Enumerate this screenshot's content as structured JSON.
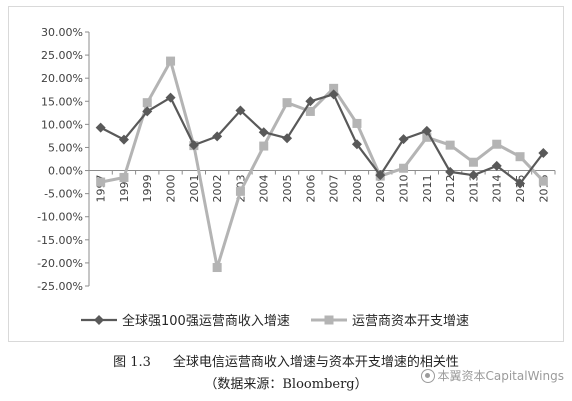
{
  "chart_data": {
    "type": "line",
    "title": "",
    "xlabel": "",
    "ylabel": "",
    "categories": [
      "1997",
      "1998",
      "1999",
      "2000",
      "2001",
      "2002",
      "2003",
      "2004",
      "2005",
      "2006",
      "2007",
      "2008",
      "2009",
      "2010",
      "2011",
      "2012",
      "2013",
      "2014",
      "2015",
      "2016"
    ],
    "ylim": [
      -0.25,
      0.3
    ],
    "ytick_step": 0.05,
    "ytick_labels": [
      "30.00%",
      "25.00%",
      "20.00%",
      "15.00%",
      "10.00%",
      "5.00%",
      "0.00%",
      "-5.00%",
      "-10.00%",
      "-15.00%",
      "-20.00%",
      "-25.00%"
    ],
    "grid": false,
    "legend_position": "bottom",
    "series": [
      {
        "name": "全球强100强运营商收入增速",
        "color": "#595959",
        "marker": "diamond",
        "values": [
          0.093,
          0.067,
          0.128,
          0.158,
          0.055,
          0.074,
          0.13,
          0.083,
          0.07,
          0.15,
          0.165,
          0.057,
          -0.01,
          0.068,
          0.086,
          -0.003,
          -0.01,
          0.01,
          -0.028,
          0.038
        ]
      },
      {
        "name": "运营商资本开支增速",
        "color": "#b4b4b4",
        "marker": "square",
        "values": [
          -0.025,
          -0.015,
          0.147,
          0.237,
          0.054,
          -0.21,
          -0.045,
          0.053,
          0.147,
          0.128,
          0.178,
          0.102,
          -0.012,
          0.005,
          0.072,
          0.055,
          0.018,
          0.057,
          0.03,
          -0.023
        ]
      }
    ]
  },
  "caption": {
    "figure_number": "图 1.3",
    "title": "全球电信运营商收入增速与资本开支增速的相关性",
    "source": "（数据来源：Bloomberg）"
  },
  "watermark": {
    "text": "本翼资本CapitalWings"
  }
}
